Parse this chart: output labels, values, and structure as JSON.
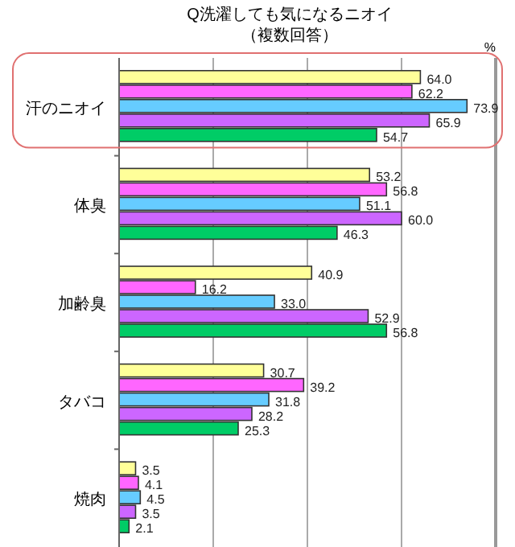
{
  "chart_data": {
    "type": "bar",
    "orientation": "horizontal",
    "title": "Q洗濯しても気になるニオイ",
    "subtitle": "（複数回答）",
    "xlabel": "%",
    "categories": [
      "汗のニオイ",
      "体臭",
      "加齢臭",
      "タバコ",
      "焼肉"
    ],
    "series": [
      {
        "color": "#ffff99",
        "values": [
          64.0,
          53.2,
          40.9,
          30.7,
          3.5
        ],
        "value_labels": [
          "64.0",
          "53.2",
          "40.9",
          "30.7",
          "3.5"
        ]
      },
      {
        "color": "#ff66ff",
        "values": [
          62.2,
          56.8,
          16.2,
          39.2,
          4.1
        ],
        "value_labels": [
          "62.2",
          "56.8",
          "16.2",
          "39.2",
          "4.1"
        ]
      },
      {
        "color": "#66ccff",
        "values": [
          73.9,
          51.1,
          33.0,
          31.8,
          4.5
        ],
        "value_labels": [
          "73.9",
          "51.1",
          "33.0",
          "31.8",
          "4.5"
        ]
      },
      {
        "color": "#cc66ff",
        "values": [
          65.9,
          60.0,
          52.9,
          28.2,
          3.5
        ],
        "value_labels": [
          "65.9",
          "60.0",
          "52.9",
          "28.2",
          "3.5"
        ]
      },
      {
        "color": "#00cc66",
        "values": [
          54.7,
          46.3,
          56.8,
          25.3,
          2.1
        ],
        "value_labels": [
          "54.7",
          "46.3",
          "56.8",
          "25.3",
          "2.1"
        ]
      }
    ],
    "xlim": [
      0,
      80
    ],
    "xticks": [
      {
        "value": 0,
        "label": null
      },
      {
        "value": 20,
        "label": null
      },
      {
        "value": 40,
        "label": null
      },
      {
        "value": 60,
        "label": null
      },
      {
        "value": 80,
        "label": null
      }
    ],
    "tick_labels": "y",
    "grid": "x"
  }
}
